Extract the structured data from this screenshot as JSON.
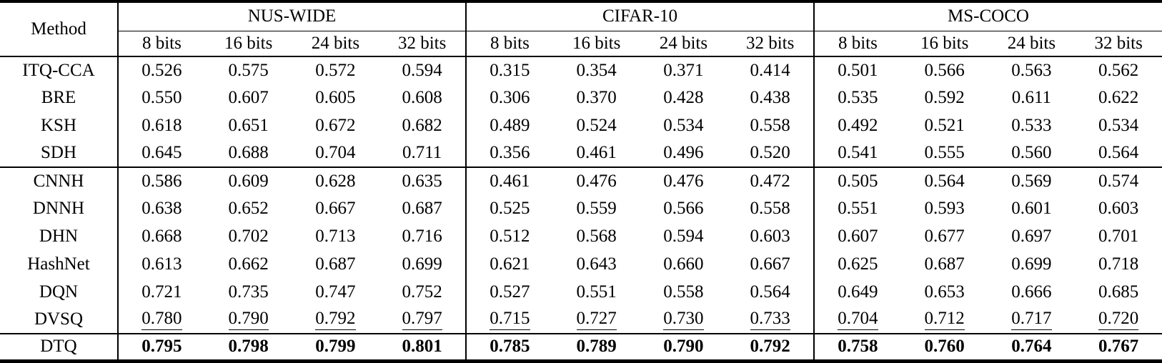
{
  "table": {
    "method_header": "Method",
    "datasets": [
      "NUS-WIDE",
      "CIFAR-10",
      "MS-COCO"
    ],
    "bit_labels": [
      "8 bits",
      "16 bits",
      "24 bits",
      "32 bits"
    ],
    "rows": [
      {
        "method": "ITQ-CCA",
        "style": "normal",
        "values": [
          "0.526",
          "0.575",
          "0.572",
          "0.594",
          "0.315",
          "0.354",
          "0.371",
          "0.414",
          "0.501",
          "0.566",
          "0.563",
          "0.562"
        ]
      },
      {
        "method": "BRE",
        "style": "normal",
        "values": [
          "0.550",
          "0.607",
          "0.605",
          "0.608",
          "0.306",
          "0.370",
          "0.428",
          "0.438",
          "0.535",
          "0.592",
          "0.611",
          "0.622"
        ]
      },
      {
        "method": "KSH",
        "style": "normal",
        "values": [
          "0.618",
          "0.651",
          "0.672",
          "0.682",
          "0.489",
          "0.524",
          "0.534",
          "0.558",
          "0.492",
          "0.521",
          "0.533",
          "0.534"
        ]
      },
      {
        "method": "SDH",
        "style": "normal",
        "values": [
          "0.645",
          "0.688",
          "0.704",
          "0.711",
          "0.356",
          "0.461",
          "0.496",
          "0.520",
          "0.541",
          "0.555",
          "0.560",
          "0.564"
        ]
      },
      {
        "method": "CNNH",
        "style": "normal",
        "values": [
          "0.586",
          "0.609",
          "0.628",
          "0.635",
          "0.461",
          "0.476",
          "0.476",
          "0.472",
          "0.505",
          "0.564",
          "0.569",
          "0.574"
        ]
      },
      {
        "method": "DNNH",
        "style": "normal",
        "values": [
          "0.638",
          "0.652",
          "0.667",
          "0.687",
          "0.525",
          "0.559",
          "0.566",
          "0.558",
          "0.551",
          "0.593",
          "0.601",
          "0.603"
        ]
      },
      {
        "method": "DHN",
        "style": "normal",
        "values": [
          "0.668",
          "0.702",
          "0.713",
          "0.716",
          "0.512",
          "0.568",
          "0.594",
          "0.603",
          "0.607",
          "0.677",
          "0.697",
          "0.701"
        ]
      },
      {
        "method": "HashNet",
        "style": "normal",
        "values": [
          "0.613",
          "0.662",
          "0.687",
          "0.699",
          "0.621",
          "0.643",
          "0.660",
          "0.667",
          "0.625",
          "0.687",
          "0.699",
          "0.718"
        ]
      },
      {
        "method": "DQN",
        "style": "normal",
        "values": [
          "0.721",
          "0.735",
          "0.747",
          "0.752",
          "0.527",
          "0.551",
          "0.558",
          "0.564",
          "0.649",
          "0.653",
          "0.666",
          "0.685"
        ]
      },
      {
        "method": "DVSQ",
        "style": "underline",
        "values": [
          "0.780",
          "0.790",
          "0.792",
          "0.797",
          "0.715",
          "0.727",
          "0.730",
          "0.733",
          "0.704",
          "0.712",
          "0.717",
          "0.720"
        ]
      },
      {
        "method": "DTQ",
        "style": "bold",
        "values": [
          "0.795",
          "0.798",
          "0.799",
          "0.801",
          "0.785",
          "0.789",
          "0.790",
          "0.792",
          "0.758",
          "0.760",
          "0.764",
          "0.767"
        ]
      }
    ],
    "colors": {
      "text": "#000000",
      "background": "#ffffff",
      "rule": "#000000"
    }
  }
}
